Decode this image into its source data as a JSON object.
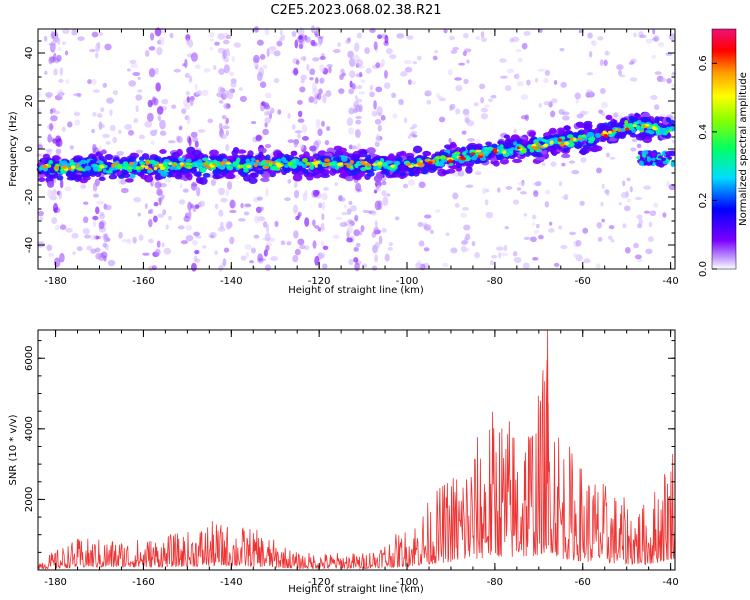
{
  "title": "C2E5.2023.068.02.38.R21",
  "colors": {
    "snr_line": "#ee3333",
    "axis": "#000000",
    "spectral_low": "#ffffff",
    "spectral_mid": "#00ff66",
    "spectral_high": "#ee1177"
  },
  "chart_data": [
    {
      "type": "heatmap",
      "title": "C2E5.2023.068.02.38.R21",
      "xlabel": "Height of straight line (km)",
      "ylabel": "Frequency (Hz)",
      "xlim": [
        -184,
        -39
      ],
      "ylim": [
        -50,
        50
      ],
      "xticks": [
        "-180",
        "-160",
        "-140",
        "-120",
        "-100",
        "-80",
        "-60",
        "-40"
      ],
      "yticks": [
        "-40",
        "-20",
        "0",
        "20",
        "40"
      ],
      "band_center_hz": [
        {
          "x": -184,
          "y": -8
        },
        {
          "x": -120,
          "y": -6
        },
        {
          "x": -100,
          "y": -7
        },
        {
          "x": -80,
          "y": -1
        },
        {
          "x": -60,
          "y": 4
        },
        {
          "x": -48,
          "y": 10
        },
        {
          "x": -39,
          "y": 8
        }
      ],
      "colorbar": {
        "label": "Normalized spectral amplitude",
        "range": [
          0.0,
          0.7
        ],
        "ticks": [
          "0.0",
          "0.2",
          "0.4",
          "0.6"
        ]
      }
    },
    {
      "type": "line",
      "xlabel": "Height of straight line (km)",
      "ylabel": "SNR (10 * v/v)",
      "xlim": [
        -184,
        -39
      ],
      "ylim": [
        0,
        6800
      ],
      "xticks": [
        "-180",
        "-160",
        "-140",
        "-120",
        "-100",
        "-80",
        "-60",
        "-40"
      ],
      "yticks": [
        "2000",
        "4000",
        "6000"
      ],
      "series": [
        {
          "name": "SNR",
          "envelope": [
            {
              "x": -184,
              "y": 300
            },
            {
              "x": -175,
              "y": 900
            },
            {
              "x": -160,
              "y": 900
            },
            {
              "x": -150,
              "y": 1100
            },
            {
              "x": -145,
              "y": 1400
            },
            {
              "x": -135,
              "y": 1200
            },
            {
              "x": -125,
              "y": 500
            },
            {
              "x": -110,
              "y": 500
            },
            {
              "x": -100,
              "y": 1200
            },
            {
              "x": -92,
              "y": 2500
            },
            {
              "x": -85,
              "y": 3600
            },
            {
              "x": -80,
              "y": 4800
            },
            {
              "x": -75,
              "y": 4300
            },
            {
              "x": -70,
              "y": 5100
            },
            {
              "x": -68,
              "y": 6800
            },
            {
              "x": -65,
              "y": 4000
            },
            {
              "x": -60,
              "y": 3000
            },
            {
              "x": -50,
              "y": 2000
            },
            {
              "x": -45,
              "y": 1900
            },
            {
              "x": -39,
              "y": 4000
            }
          ]
        }
      ]
    }
  ]
}
